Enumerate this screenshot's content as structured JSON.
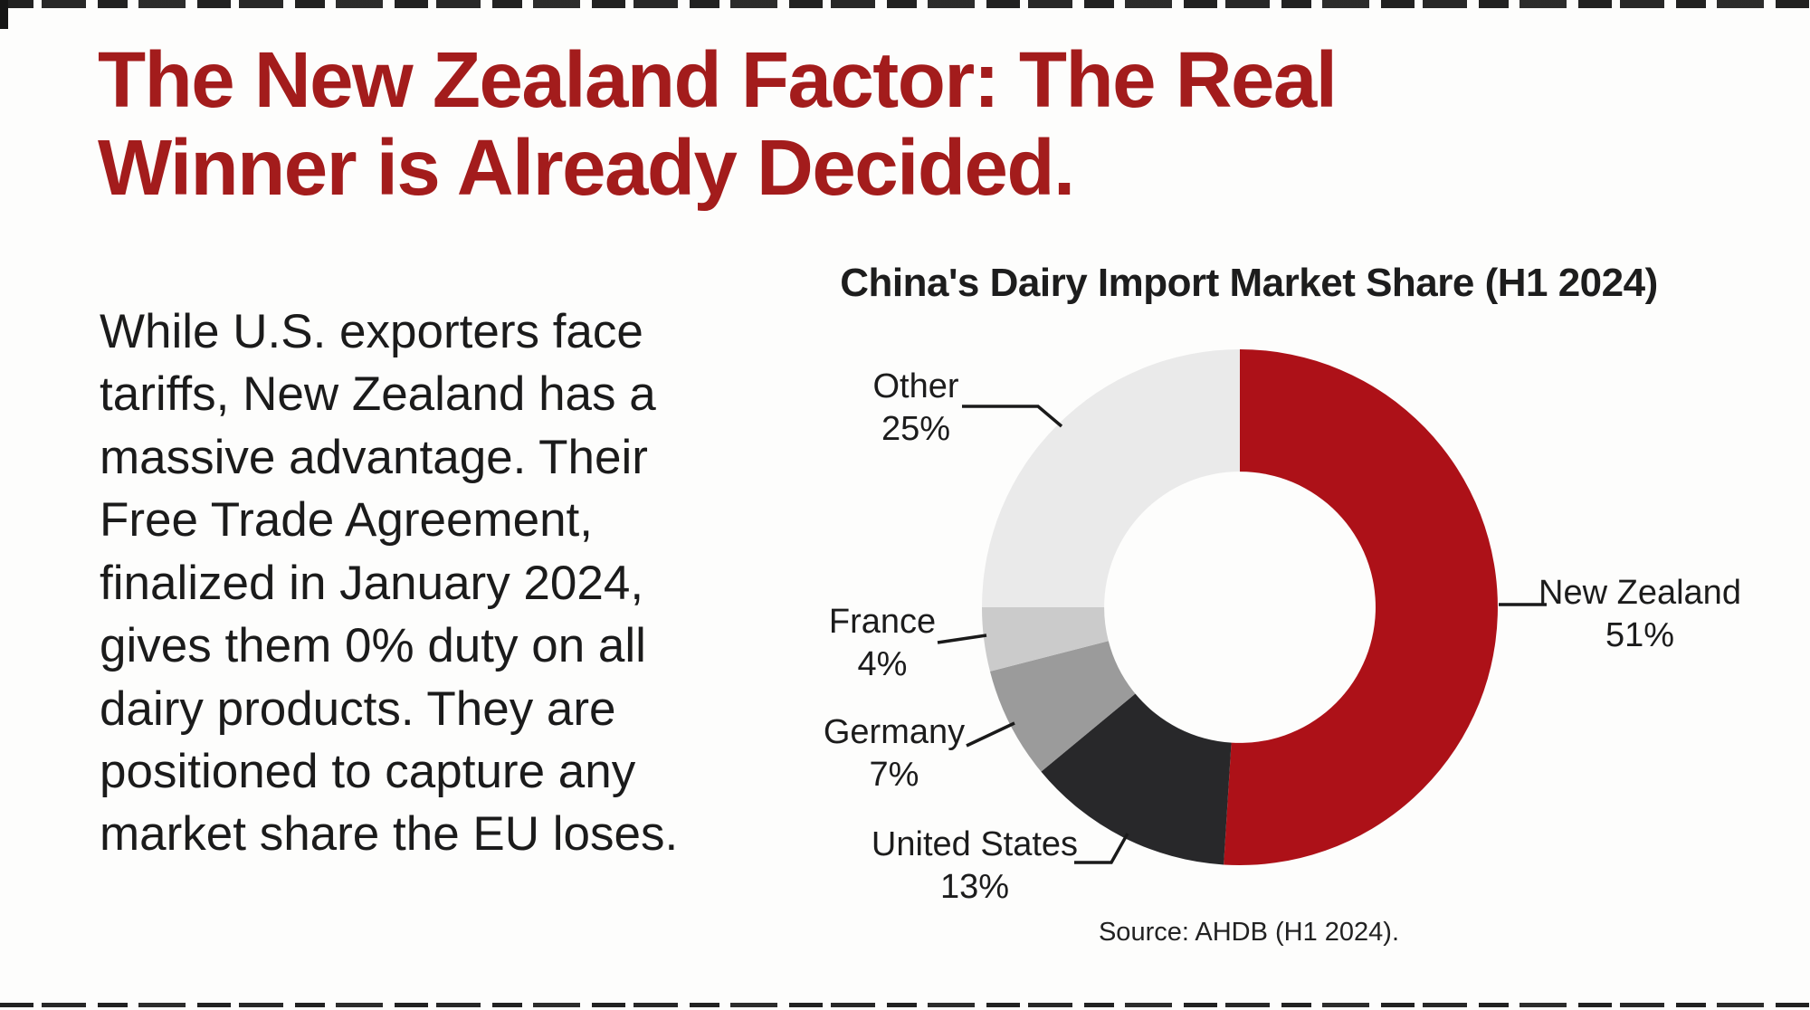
{
  "page": {
    "title": "The New Zealand Factor: The Real\nWinner is Already Decided.",
    "title_color": "#a31c1c",
    "body_text": "While U.S. exporters face\ntariffs, New Zealand has a\nmassive advantage. Their\nFree Trade Agreement,\nfinalized in January 2024,\ngives them 0% duty on all\ndairy products. They are\npositioned to capture any\nmarket share the EU loses."
  },
  "chart_data": {
    "type": "pie",
    "donut": true,
    "title": "China's Dairy Import Market Share (H1 2024)",
    "source": "Source: AHDB (H1 2024).",
    "start_angle_deg": 0,
    "direction": "clockwise",
    "inner_radius_ratio": 0.526,
    "segments": [
      {
        "label": "New Zealand",
        "value": 51,
        "display": "New Zealand\n51%",
        "color": "#ad1118"
      },
      {
        "label": "United States",
        "value": 13,
        "display": "United States\n13%",
        "color": "#28282a"
      },
      {
        "label": "Germany",
        "value": 7,
        "display": "Germany\n7%",
        "color": "#9b9b9b"
      },
      {
        "label": "France",
        "value": 4,
        "display": "France\n4%",
        "color": "#cbcbcb"
      },
      {
        "label": "Other",
        "value": 25,
        "display": "Other\n25%",
        "color": "#eaeaea"
      }
    ]
  }
}
